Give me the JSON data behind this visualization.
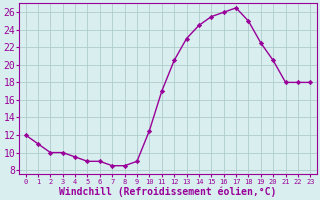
{
  "x": [
    0,
    1,
    2,
    3,
    4,
    5,
    6,
    7,
    8,
    9,
    10,
    11,
    12,
    13,
    14,
    15,
    16,
    17,
    18,
    19,
    20,
    21,
    22,
    23
  ],
  "y": [
    12,
    11,
    10,
    10,
    9.5,
    9,
    9,
    8.5,
    8.5,
    9,
    12.5,
    17,
    20.5,
    23,
    24.5,
    25.5,
    26,
    26.5,
    25,
    22.5,
    20.5,
    18,
    18,
    18
  ],
  "line_color": "#990099",
  "marker": "D",
  "marker_size": 2.2,
  "bg_color": "#d9eeee",
  "grid_color": "#b0cccc",
  "xlabel": "Windchill (Refroidissement éolien,°C)",
  "xlabel_color": "#990099",
  "tick_color": "#990099",
  "spine_color": "#990099",
  "ylim": [
    7.5,
    27
  ],
  "yticks": [
    8,
    10,
    12,
    14,
    16,
    18,
    20,
    22,
    24,
    26
  ],
  "xlim": [
    -0.5,
    23.5
  ],
  "ytick_fontsize": 7,
  "xtick_fontsize": 5,
  "xlabel_fontsize": 7
}
